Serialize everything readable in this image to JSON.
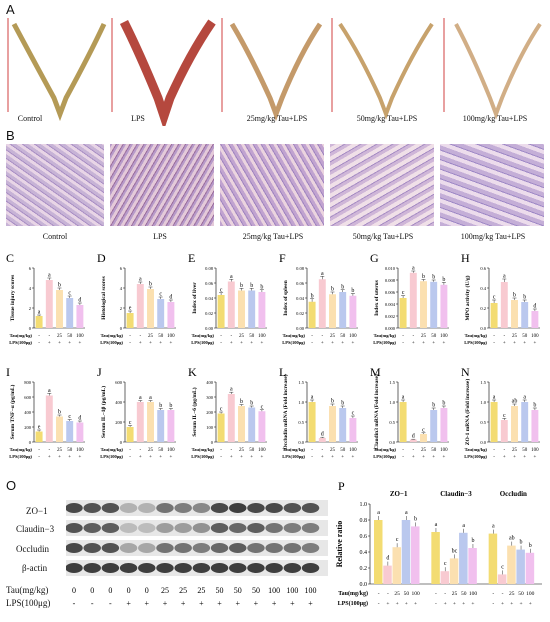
{
  "panel_a": {
    "letter": "A",
    "captions": [
      "Control",
      "LPS",
      "25mg/kg Tau+LPS",
      "50mg/kg Tau+LPS",
      "100mg/kg Tau+LPS"
    ]
  },
  "panel_b": {
    "letter": "B",
    "captions": [
      "Control",
      "LPS",
      "25mg/kg Tau+LPS",
      "50mg/kg Tau+LPS",
      "100mg/kg Tau+LPS"
    ]
  },
  "colors": {
    "control": "#f3dc72",
    "lps": "#f8cad1",
    "tau25": "#fbe0b0",
    "tau50": "#bac8ee",
    "tau100": "#f1c0ee"
  },
  "chart_data": [
    {
      "letter": "C",
      "type": "bar",
      "ylabel": "Tissue injury scores",
      "ylim": [
        0,
        6
      ],
      "yticks": [
        "0",
        "2",
        "4",
        "6"
      ],
      "values": [
        1.2,
        4.8,
        3.8,
        3.0,
        2.3
      ],
      "errors": [
        0.1,
        0.2,
        0.2,
        0.2,
        0.2
      ],
      "sig": [
        "a",
        "a",
        "b",
        "c",
        "d"
      ]
    },
    {
      "letter": "D",
      "type": "bar",
      "ylabel": "Histological scores",
      "ylim": [
        0,
        6
      ],
      "yticks": [
        "0",
        "2",
        "4",
        "6"
      ],
      "values": [
        1.5,
        4.4,
        3.9,
        2.9,
        2.6
      ],
      "errors": [
        0.2,
        0.2,
        0.2,
        0.2,
        0.2
      ],
      "sig": [
        "e",
        "a",
        "b",
        "c",
        "d"
      ]
    },
    {
      "letter": "E",
      "type": "bar",
      "ylabel": "Index of liver",
      "ylim": [
        0,
        0.08
      ],
      "yticks": [
        "0.00",
        "0.02",
        "0.04",
        "0.06",
        "0.08"
      ],
      "values": [
        0.044,
        0.062,
        0.05,
        0.05,
        0.048
      ],
      "errors": [
        0.003,
        0.003,
        0.003,
        0.003,
        0.003
      ],
      "sig": [
        "c",
        "a",
        "b",
        "b",
        "b"
      ]
    },
    {
      "letter": "F",
      "type": "bar",
      "ylabel": "Index of spleen",
      "ylim": [
        0,
        0.08
      ],
      "yticks": [
        "0.00",
        "0.02",
        "0.04",
        "0.06",
        "0.08"
      ],
      "values": [
        0.035,
        0.065,
        0.045,
        0.048,
        0.043
      ],
      "errors": [
        0.004,
        0.004,
        0.003,
        0.003,
        0.003
      ],
      "sig": [
        "b",
        "a",
        "b",
        "b",
        "b"
      ]
    },
    {
      "letter": "G",
      "type": "bar",
      "ylabel": "Index of uterus",
      "ylim": [
        0,
        0.01
      ],
      "yticks": [
        "0.000",
        "0.002",
        "0.004",
        "0.006",
        "0.008",
        "0.010"
      ],
      "values": [
        0.005,
        0.0092,
        0.0078,
        0.0077,
        0.0072
      ],
      "errors": [
        0.0004,
        0.0003,
        0.0003,
        0.0003,
        0.0004
      ],
      "sig": [
        "c",
        "a",
        "b",
        "b",
        "b"
      ]
    },
    {
      "letter": "H",
      "type": "bar",
      "ylabel": "MPO activity (U/g)",
      "ylim": [
        0,
        0.6
      ],
      "yticks": [
        "0.0",
        "0.2",
        "0.4",
        "0.6"
      ],
      "values": [
        0.25,
        0.46,
        0.28,
        0.26,
        0.17
      ],
      "errors": [
        0.03,
        0.03,
        0.02,
        0.02,
        0.02
      ],
      "sig": [
        "c",
        "a",
        "b",
        "b",
        "d"
      ]
    },
    {
      "letter": "I",
      "type": "bar",
      "ylabel": "Serum TNF−α (pg/mL)",
      "ylim": [
        0,
        800
      ],
      "yticks": [
        "0",
        "200",
        "400",
        "600",
        "800"
      ],
      "values": [
        140,
        620,
        340,
        280,
        260
      ],
      "errors": [
        20,
        30,
        20,
        20,
        20
      ],
      "sig": [
        "e",
        "a",
        "b",
        "c",
        "d"
      ]
    },
    {
      "letter": "J",
      "type": "bar",
      "ylabel": "Serum IL−1β (pg/mL)",
      "ylim": [
        0,
        600
      ],
      "yticks": [
        "0",
        "200",
        "400",
        "600"
      ],
      "values": [
        150,
        400,
        400,
        320,
        320
      ],
      "errors": [
        15,
        15,
        15,
        15,
        15
      ],
      "sig": [
        "c",
        "a",
        "a",
        "b",
        "b"
      ]
    },
    {
      "letter": "K",
      "type": "bar",
      "ylabel": "Serum IL−6 (pg/mL)",
      "ylim": [
        0,
        400
      ],
      "yticks": [
        "0",
        "100",
        "200",
        "300",
        "400"
      ],
      "values": [
        190,
        320,
        240,
        230,
        205
      ],
      "errors": [
        10,
        12,
        10,
        10,
        10
      ],
      "sig": [
        "c",
        "a",
        "b",
        "b",
        "c"
      ]
    },
    {
      "letter": "L",
      "type": "bar",
      "ylabel": "Occludin mRNA (Fold increase)",
      "ylim": [
        0,
        1.5
      ],
      "yticks": [
        "0.0",
        "0.5",
        "1.0",
        "1.5"
      ],
      "values": [
        1.0,
        0.1,
        0.9,
        0.85,
        0.6
      ],
      "errors": [
        0.05,
        0.02,
        0.05,
        0.05,
        0.05
      ],
      "sig": [
        "a",
        "d",
        "b",
        "b",
        "c"
      ]
    },
    {
      "letter": "M",
      "type": "bar",
      "ylabel": "Claudin3 mRNA (Fold increase)",
      "ylim": [
        0,
        1.5
      ],
      "yticks": [
        "0.0",
        "0.5",
        "1.0",
        "1.5"
      ],
      "values": [
        1.0,
        0.06,
        0.2,
        0.8,
        0.85
      ],
      "errors": [
        0.05,
        0.01,
        0.03,
        0.05,
        0.05
      ],
      "sig": [
        "a",
        "d",
        "c",
        "b",
        "b"
      ]
    },
    {
      "letter": "N",
      "type": "bar",
      "ylabel": "ZO-1 mRNA (Fold increase)",
      "ylim": [
        0,
        1.5
      ],
      "yticks": [
        "0.0",
        "0.5",
        "1.0",
        "1.5"
      ],
      "values": [
        1.0,
        0.55,
        0.9,
        1.0,
        0.8
      ],
      "errors": [
        0.05,
        0.04,
        0.05,
        0.05,
        0.05
      ],
      "sig": [
        "a",
        "c",
        "ab",
        "a",
        "b"
      ]
    },
    {
      "letter": "P",
      "type": "bar",
      "ylabel": "Relative ratio",
      "ylim": [
        0,
        1.0
      ],
      "yticks": [
        "0.0",
        "0.2",
        "0.4",
        "0.6",
        "0.8",
        "1.0"
      ],
      "groups": [
        "ZO−1",
        "Claudin−3",
        "Occludin"
      ],
      "series": [
        {
          "values": [
            0.8,
            0.65,
            0.63
          ],
          "sig": [
            "a",
            "a",
            "a"
          ]
        },
        {
          "values": [
            0.23,
            0.16,
            0.12
          ],
          "sig": [
            "d",
            "c",
            "c"
          ]
        },
        {
          "values": [
            0.46,
            0.32,
            0.48
          ],
          "sig": [
            "c",
            "bc",
            "ab"
          ]
        },
        {
          "values": [
            0.8,
            0.64,
            0.43
          ],
          "sig": [
            "a",
            "a",
            "b"
          ]
        },
        {
          "values": [
            0.72,
            0.45,
            0.39
          ],
          "sig": [
            "b",
            "b",
            "b"
          ]
        }
      ]
    }
  ],
  "dose_row": {
    "tau_label": "Tau(mg/kg)",
    "lps_label": "LPS(100μg)",
    "tau": [
      "-",
      "-",
      "25",
      "50",
      "100"
    ],
    "lps": [
      "-",
      "+",
      "+",
      "+",
      "+"
    ]
  },
  "blot": {
    "letter": "O",
    "bands": [
      "ZO−1",
      "Claudin−3",
      "Occludin",
      "β-actin"
    ],
    "tau_label": "Tau(mg/kg)",
    "lps_label": "LPS(100μg)",
    "tau": [
      "0",
      "0",
      "0",
      "0",
      "0",
      "25",
      "25",
      "25",
      "50",
      "50",
      "50",
      "100",
      "100",
      "100"
    ],
    "lps": [
      "-",
      "-",
      "-",
      "+",
      "+",
      "+",
      "+",
      "+",
      "+",
      "+",
      "+",
      "+",
      "+",
      "+"
    ]
  },
  "p_dose": {
    "tau_label": "Tau(mg/kg)",
    "lps_label": "LPS(100μg)",
    "tau": [
      "-",
      "-",
      "25",
      "50",
      "100"
    ],
    "lps": [
      "-",
      "+",
      "+",
      "+",
      "+"
    ]
  }
}
